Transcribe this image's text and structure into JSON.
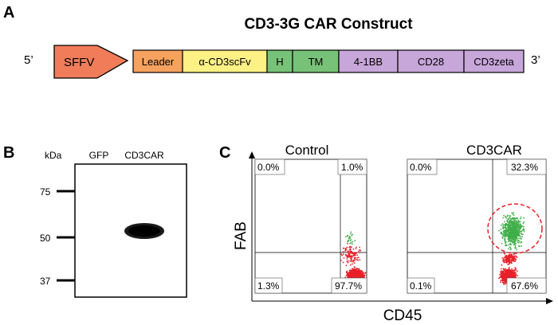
{
  "panelA": {
    "letter": "A",
    "title": "CD3-3G CAR Construct",
    "five_prime": "5’",
    "three_prime": "3’",
    "promoter": {
      "label": "SFFV",
      "color": "#f07c5a"
    },
    "segments": [
      {
        "label": "Leader",
        "color": "#f5a15f"
      },
      {
        "label": "α-CD3scFv",
        "color": "#fdf084"
      },
      {
        "label": "H",
        "color": "#78c178"
      },
      {
        "label": "TM",
        "color": "#78c178"
      },
      {
        "label": "4-1BB",
        "color": "#c7a6d9"
      },
      {
        "label": "CD28",
        "color": "#c7a6d9"
      },
      {
        "label": "CD3zeta",
        "color": "#c7a6d9"
      }
    ]
  },
  "panelB": {
    "letter": "B",
    "unit": "kDa",
    "lanes": [
      "GFP",
      "CD3CAR"
    ],
    "markers": [
      "75",
      "50",
      "37"
    ]
  },
  "panelC": {
    "letter": "C",
    "xlabel": "CD45",
    "ylabel": "FAB",
    "plots": [
      {
        "title": "Control",
        "q_ul": "0.0%",
        "q_ur": "1.0%",
        "q_ll": "1.3%",
        "q_lr": "97.7%"
      },
      {
        "title": "CD3CAR",
        "q_ul": "0.0%",
        "q_ur": "32.3%",
        "q_ll": "0.1%",
        "q_lr": "67.6%"
      }
    ],
    "colors": {
      "lower": "#e8202a",
      "upper": "#3fae49",
      "gate": "#e8202a"
    }
  }
}
